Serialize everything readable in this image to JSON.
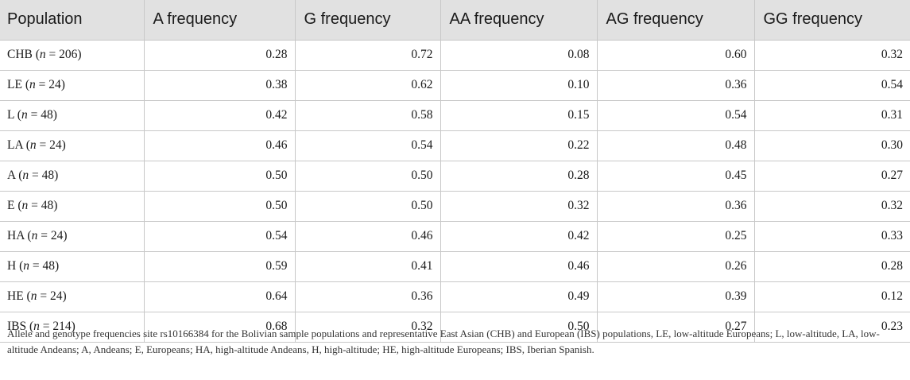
{
  "table": {
    "headers": [
      "Population",
      "A frequency",
      "G frequency",
      "AA frequency",
      "AG frequency",
      "GG frequency"
    ],
    "rows": [
      {
        "pop": "CHB",
        "n": "206",
        "values": [
          "0.28",
          "0.72",
          "0.08",
          "0.60",
          "0.32"
        ]
      },
      {
        "pop": "LE",
        "n": "24",
        "values": [
          "0.38",
          "0.62",
          "0.10",
          "0.36",
          "0.54"
        ]
      },
      {
        "pop": "L",
        "n": "48",
        "values": [
          "0.42",
          "0.58",
          "0.15",
          "0.54",
          "0.31"
        ]
      },
      {
        "pop": "LA",
        "n": "24",
        "values": [
          "0.46",
          "0.54",
          "0.22",
          "0.48",
          "0.30"
        ]
      },
      {
        "pop": "A",
        "n": "48",
        "values": [
          "0.50",
          "0.50",
          "0.28",
          "0.45",
          "0.27"
        ]
      },
      {
        "pop": "E",
        "n": "48",
        "values": [
          "0.50",
          "0.50",
          "0.32",
          "0.36",
          "0.32"
        ]
      },
      {
        "pop": "HA",
        "n": "24",
        "values": [
          "0.54",
          "0.46",
          "0.42",
          "0.25",
          "0.33"
        ]
      },
      {
        "pop": "H",
        "n": "48",
        "values": [
          "0.59",
          "0.41",
          "0.46",
          "0.26",
          "0.28"
        ]
      },
      {
        "pop": "HE",
        "n": "24",
        "values": [
          "0.64",
          "0.36",
          "0.49",
          "0.39",
          "0.12"
        ]
      },
      {
        "pop": "IBS",
        "n": "214",
        "values": [
          "0.68",
          "0.32",
          "0.50",
          "0.27",
          "0.23"
        ]
      }
    ]
  },
  "caption": "Allele and genotype frequencies site rs10166384 for the Bolivian sample populations and representative East Asian (CHB) and European (IBS) populations, LE, low-altitude Europeans; L, low-altitude, LA, low-altitude Andeans; A, Andeans; E, Europeans; HA, high-altitude Andeans, H, high-altitude; HE, high-altitude Europeans; IBS, Iberian Spanish."
}
